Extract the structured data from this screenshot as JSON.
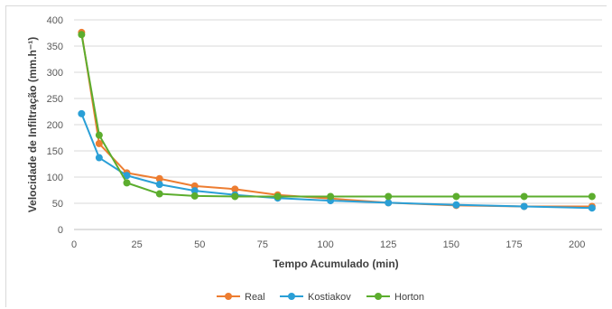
{
  "chart_data": {
    "type": "line",
    "title": "",
    "xlabel": "Tempo Acumulado (min)",
    "ylabel": "Velocidade de Infiltração (mm.h⁻¹)",
    "xlim": [
      0,
      210
    ],
    "ylim": [
      0,
      400
    ],
    "x_ticks": [
      0,
      25,
      50,
      75,
      100,
      125,
      150,
      175,
      200
    ],
    "y_ticks": [
      0,
      50,
      100,
      150,
      200,
      250,
      300,
      350,
      400
    ],
    "grid": "horizontal",
    "legend_position": "bottom",
    "x": [
      3,
      10,
      21,
      34,
      48,
      64,
      81,
      102,
      125,
      152,
      179,
      206
    ],
    "series": [
      {
        "name": "Real",
        "color": "#ED7D31",
        "values": [
          376,
          164,
          108,
          97,
          83,
          77,
          66,
          59,
          51,
          46,
          44,
          44
        ]
      },
      {
        "name": "Kostiakov",
        "color": "#2A9FD6",
        "values": [
          221,
          137,
          103,
          86,
          74,
          66,
          60,
          55,
          51,
          47,
          44,
          41
        ]
      },
      {
        "name": "Horton",
        "color": "#5CAD2E",
        "values": [
          372,
          180,
          89,
          68,
          64,
          63,
          63,
          63,
          63,
          63,
          63,
          63
        ]
      }
    ]
  }
}
